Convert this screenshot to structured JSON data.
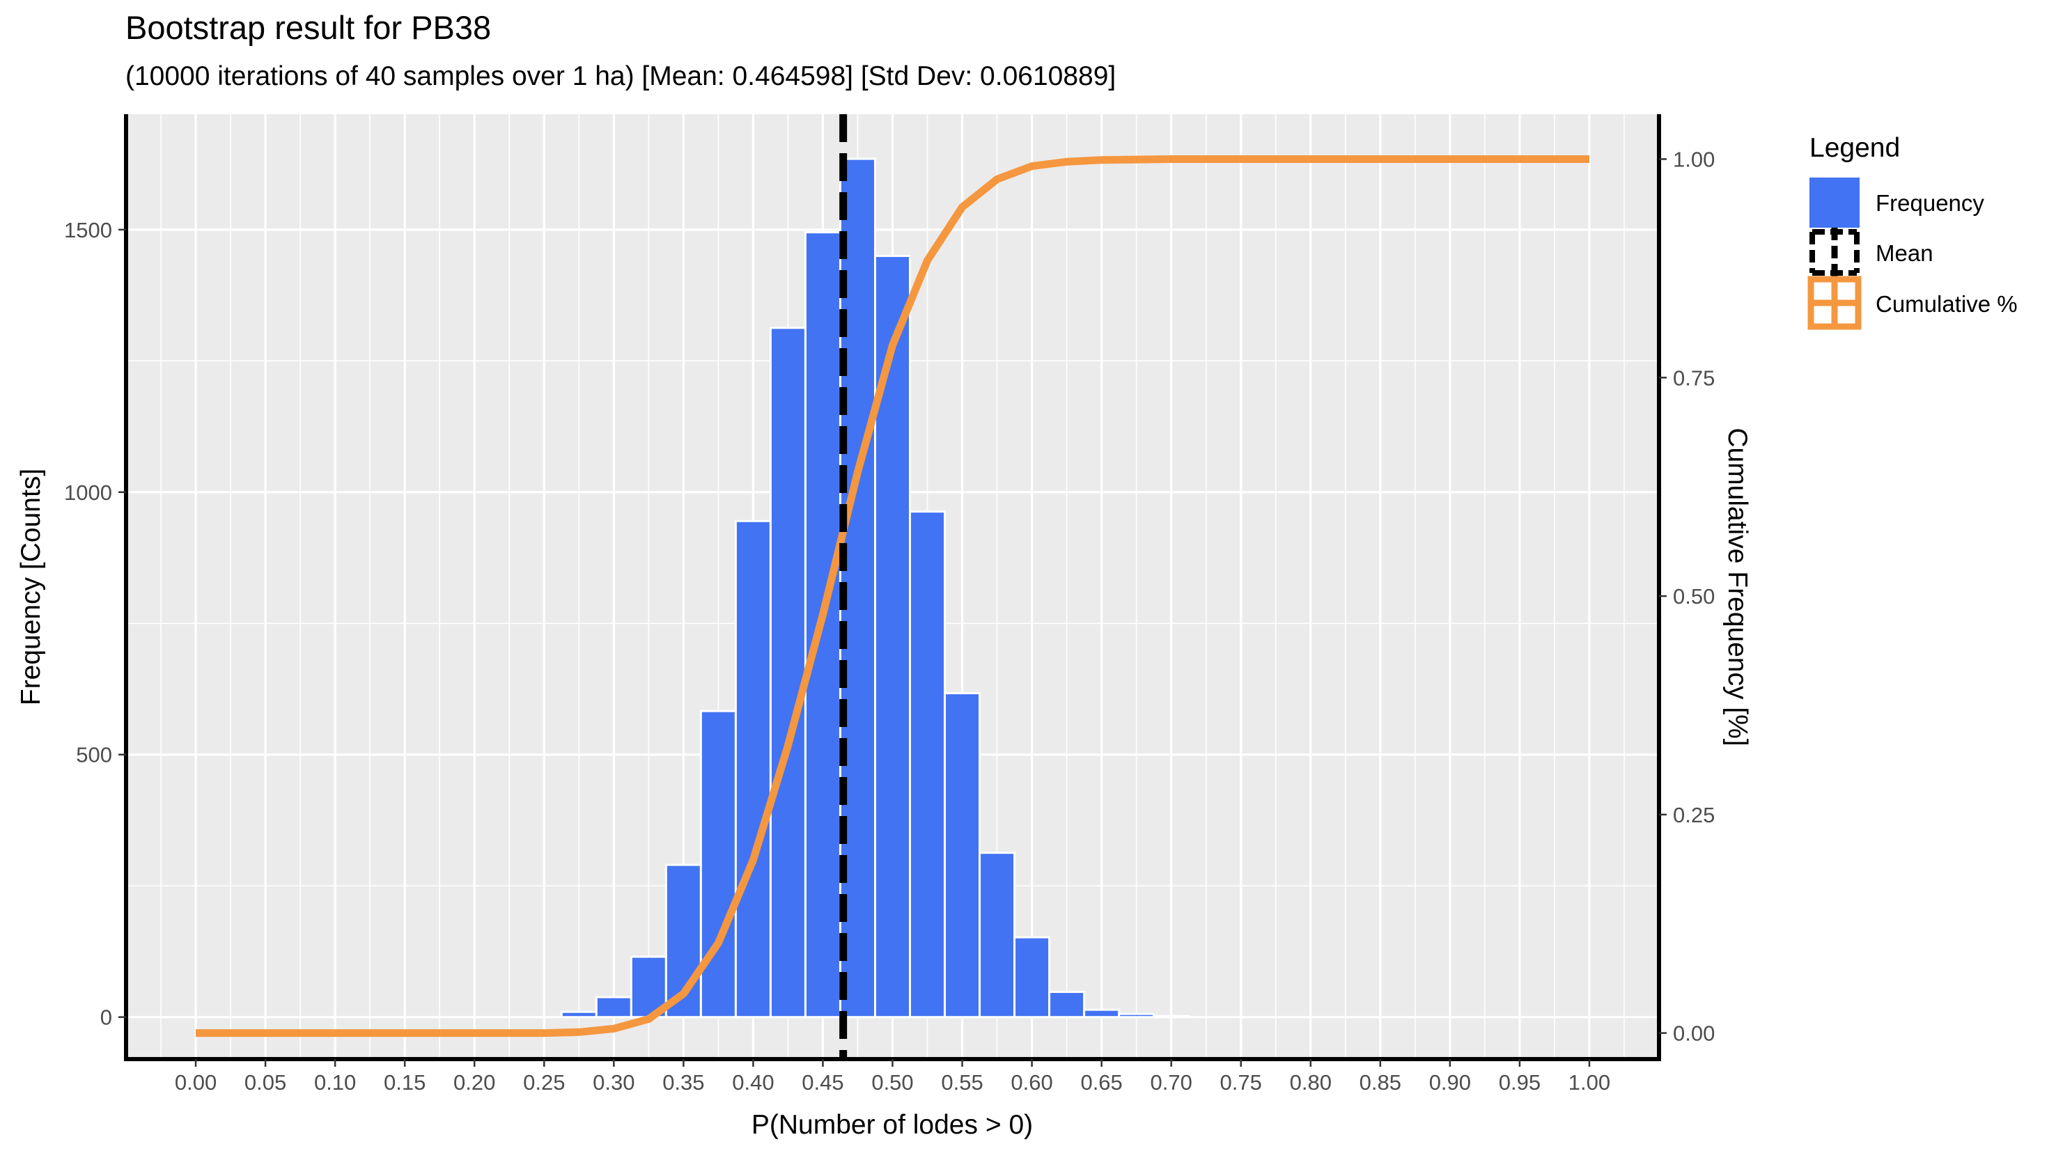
{
  "chart_data": {
    "type": "bar",
    "title": "Bootstrap result for PB38",
    "subtitle": "(10000 iterations of 40 samples over 1 ha) [Mean: 0.464598] [Std Dev: 0.0610889]",
    "xlabel": "P(Number of lodes > 0)",
    "ylabel": "Frequency [Counts]",
    "y2label": "Cumulative Frequency [%]",
    "xlim": [
      -0.05,
      1.05
    ],
    "ylim": [
      -80,
      1720
    ],
    "y2lim": [
      -0.0298,
      1.0514
    ],
    "x_ticks": [
      "0.00",
      "0.05",
      "0.10",
      "0.15",
      "0.20",
      "0.25",
      "0.30",
      "0.35",
      "0.40",
      "0.45",
      "0.50",
      "0.55",
      "0.60",
      "0.65",
      "0.70",
      "0.75",
      "0.80",
      "0.85",
      "0.90",
      "0.95",
      "1.00"
    ],
    "y_ticks": [
      0,
      500,
      1000,
      1500
    ],
    "y_tick_labels": [
      "0",
      "500",
      "1000",
      "1500"
    ],
    "y2_ticks": [
      0,
      0.25,
      0.5,
      0.75,
      1.0
    ],
    "y2_tick_labels": [
      "0.00",
      "0.25",
      "0.50",
      "0.75",
      "1.00"
    ],
    "grid": true,
    "legend_placement": "right",
    "series": [
      {
        "name": "Frequency",
        "type": "bar",
        "color": "#4273f3",
        "bin_width": 0.025,
        "x": [
          0.275,
          0.3,
          0.325,
          0.35,
          0.375,
          0.4,
          0.425,
          0.45,
          0.475,
          0.5,
          0.525,
          0.55,
          0.575,
          0.6,
          0.625,
          0.65,
          0.675,
          0.7
        ],
        "values": [
          10,
          38,
          115,
          290,
          583,
          945,
          1313,
          1495,
          1635,
          1450,
          963,
          617,
          313,
          152,
          48,
          14,
          6,
          2
        ]
      },
      {
        "name": "Mean",
        "type": "vline",
        "color": "#000000",
        "dash": "dashed",
        "x": 0.464598
      },
      {
        "name": "Cumulative %",
        "type": "line",
        "axis": "right",
        "color": "#f5973f",
        "x": [
          0.0,
          0.025,
          0.05,
          0.075,
          0.1,
          0.125,
          0.15,
          0.175,
          0.2,
          0.225,
          0.25,
          0.275,
          0.3,
          0.325,
          0.35,
          0.375,
          0.4,
          0.425,
          0.45,
          0.475,
          0.5,
          0.525,
          0.55,
          0.575,
          0.6,
          0.625,
          0.65,
          0.675,
          0.7,
          0.725,
          0.75,
          0.8,
          0.85,
          0.9,
          0.95,
          1.0
        ],
        "values": [
          0,
          0,
          0,
          0,
          0,
          0,
          0,
          0,
          0,
          0,
          0,
          0.001,
          0.005,
          0.016,
          0.045,
          0.103,
          0.198,
          0.329,
          0.479,
          0.642,
          0.787,
          0.884,
          0.945,
          0.977,
          0.992,
          0.997,
          0.999,
          0.9995,
          1.0,
          1.0,
          1.0,
          1.0,
          1.0,
          1.0,
          1.0,
          1.0
        ]
      }
    ]
  },
  "legend": {
    "title": "Legend",
    "items": [
      "Frequency",
      "Mean",
      "Cumulative %"
    ]
  }
}
